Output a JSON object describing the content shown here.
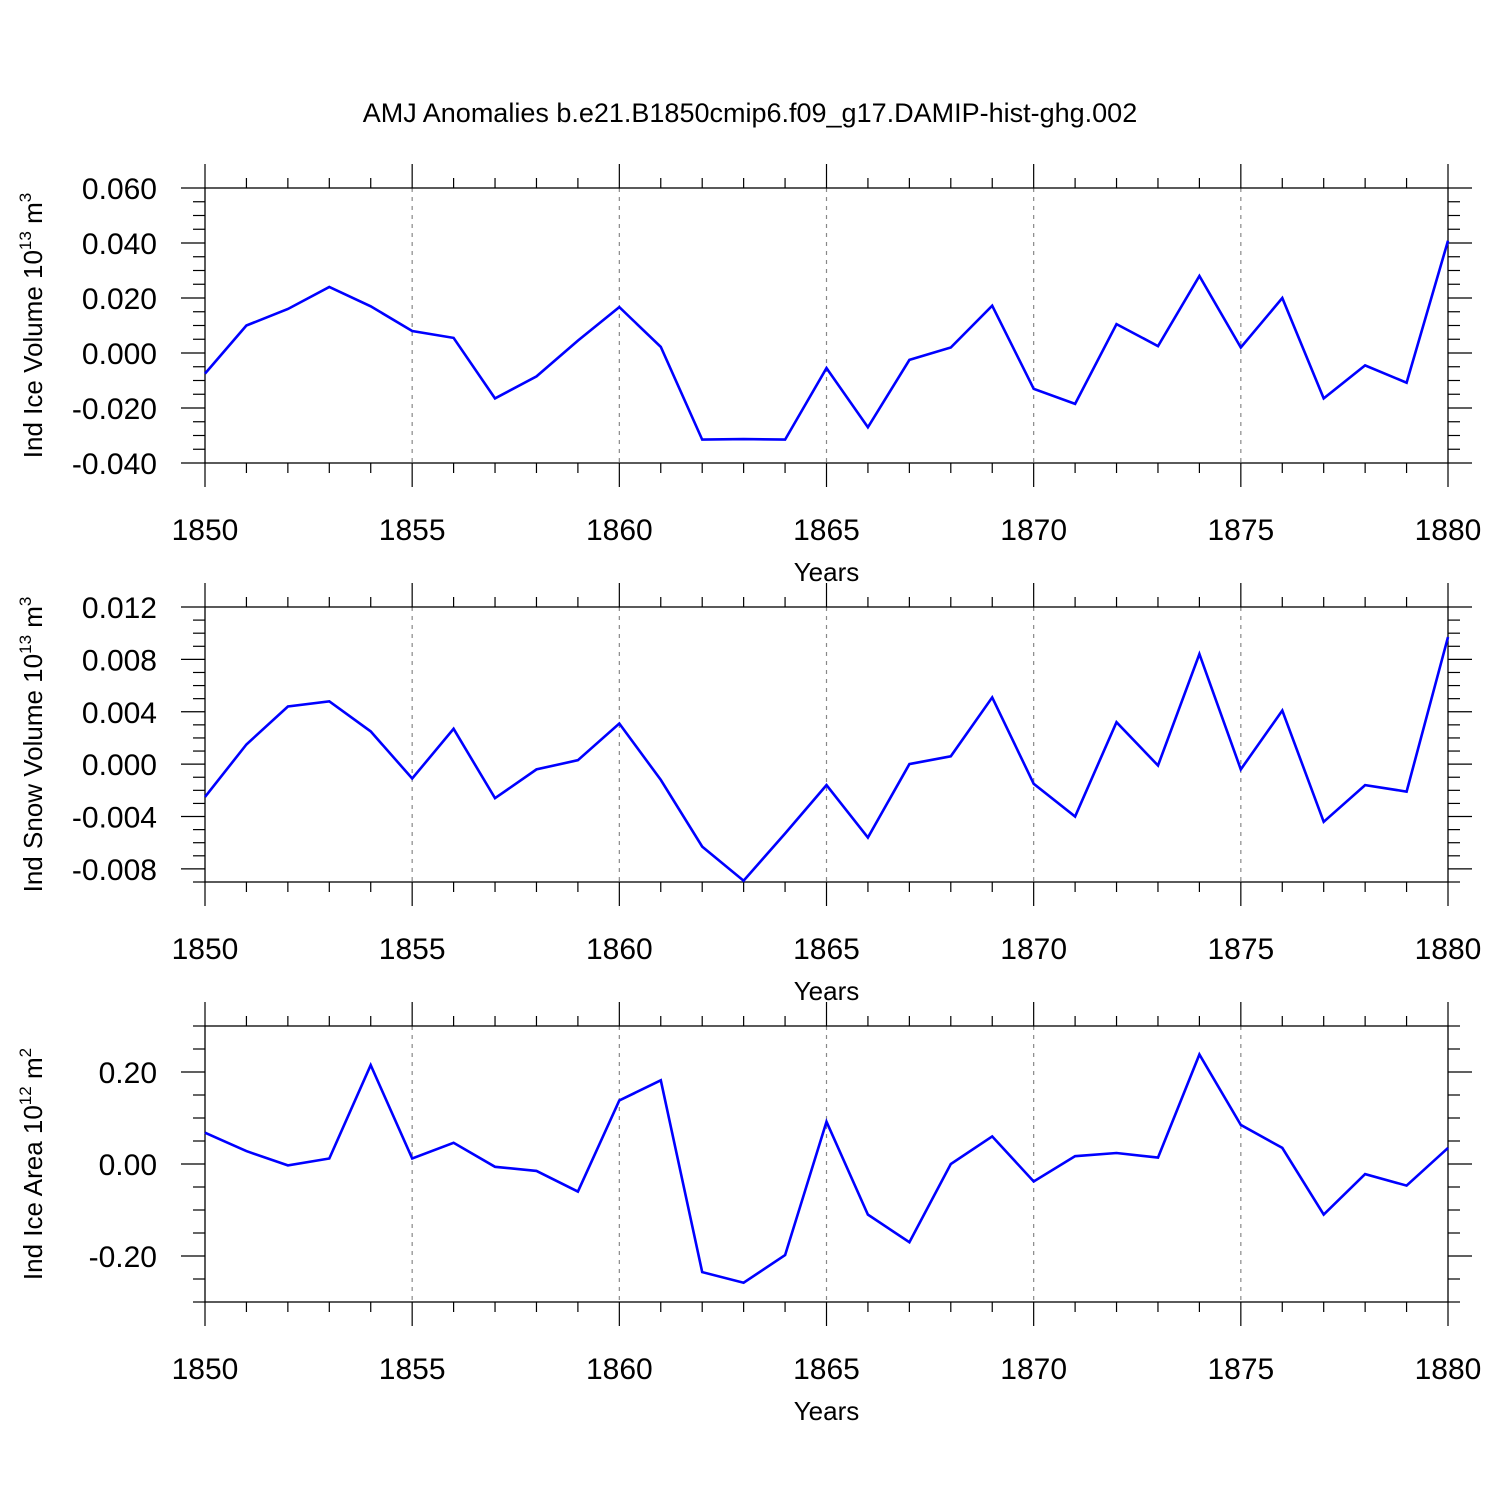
{
  "title": "AMJ Anomalies b.e21.B1850cmip6.f09_g17.DAMIP-hist-ghg.002",
  "colors": {
    "line": "#0000ff",
    "axis": "#000000",
    "grid": "#888888"
  },
  "chart_data": [
    {
      "type": "line",
      "ylabel": {
        "main": "Ind Ice Volume 10",
        "exp": "13",
        "unit": " m",
        "unit_exp": "3"
      },
      "xlabel": "Years",
      "xlim": [
        1850,
        1880
      ],
      "ylim": [
        -0.04,
        0.06
      ],
      "x_ticks": [
        "1850",
        "1855",
        "1860",
        "1865",
        "1870",
        "1875",
        "1880"
      ],
      "y_ticks": [
        {
          "v": 0.06,
          "label": "0.060"
        },
        {
          "v": 0.04,
          "label": "0.040"
        },
        {
          "v": 0.02,
          "label": "0.020"
        },
        {
          "v": 0.0,
          "label": "0.000"
        },
        {
          "v": -0.02,
          "label": "-0.020"
        },
        {
          "v": -0.04,
          "label": "-0.040"
        }
      ],
      "grid": "vertical dashed at major x ticks",
      "x": [
        1850,
        1851,
        1852,
        1853,
        1854,
        1855,
        1856,
        1857,
        1858,
        1859,
        1860,
        1861,
        1862,
        1863,
        1864,
        1865,
        1866,
        1867,
        1868,
        1869,
        1870,
        1871,
        1872,
        1873,
        1874,
        1875,
        1876,
        1877,
        1878,
        1879,
        1880
      ],
      "values": [
        -0.0075,
        0.01,
        0.016,
        0.024,
        0.017,
        0.008,
        0.0055,
        -0.0165,
        -0.0085,
        0.0045,
        0.0167,
        0.0022,
        -0.0315,
        -0.0313,
        -0.0315,
        -0.0055,
        -0.027,
        -0.0025,
        0.002,
        0.0172,
        -0.013,
        -0.0185,
        0.0105,
        0.0025,
        0.028,
        0.002,
        0.02,
        -0.0165,
        -0.0045,
        -0.0108,
        0.0408
      ]
    },
    {
      "type": "line",
      "ylabel": {
        "main": "Ind Snow Volume 10",
        "exp": "13",
        "unit": " m",
        "unit_exp": "3"
      },
      "xlabel": "Years",
      "xlim": [
        1850,
        1880
      ],
      "ylim": [
        -0.009,
        0.012
      ],
      "x_ticks": [
        "1850",
        "1855",
        "1860",
        "1865",
        "1870",
        "1875",
        "1880"
      ],
      "y_ticks": [
        {
          "v": 0.012,
          "label": "0.012"
        },
        {
          "v": 0.008,
          "label": "0.008"
        },
        {
          "v": 0.004,
          "label": "0.004"
        },
        {
          "v": 0.0,
          "label": "0.000"
        },
        {
          "v": -0.004,
          "label": "-0.004"
        },
        {
          "v": -0.008,
          "label": "-0.008"
        }
      ],
      "grid": "vertical dashed at major x ticks",
      "x": [
        1850,
        1851,
        1852,
        1853,
        1854,
        1855,
        1856,
        1857,
        1858,
        1859,
        1860,
        1861,
        1862,
        1863,
        1864,
        1865,
        1866,
        1867,
        1868,
        1869,
        1870,
        1871,
        1872,
        1873,
        1874,
        1875,
        1876,
        1877,
        1878,
        1879,
        1880
      ],
      "values": [
        -0.0025,
        0.0015,
        0.0044,
        0.0048,
        0.0025,
        -0.0011,
        0.0027,
        -0.0026,
        -0.0004,
        0.0003,
        0.0031,
        -0.0012,
        -0.0063,
        -0.0089,
        -0.0053,
        -0.0016,
        -0.0056,
        0.0,
        0.0006,
        0.0051,
        -0.0015,
        -0.004,
        0.0032,
        -0.0001,
        0.0084,
        -0.0004,
        0.0041,
        -0.0044,
        -0.0016,
        -0.0021,
        0.0097
      ]
    },
    {
      "type": "line",
      "ylabel": {
        "main": "Ind Ice Area 10",
        "exp": "12",
        "unit": " m",
        "unit_exp": "2"
      },
      "xlabel": "Years",
      "xlim": [
        1850,
        1880
      ],
      "ylim": [
        -0.3,
        0.3
      ],
      "x_ticks": [
        "1850",
        "1855",
        "1860",
        "1865",
        "1870",
        "1875",
        "1880"
      ],
      "y_ticks": [
        {
          "v": 0.2,
          "label": "0.20"
        },
        {
          "v": 0.0,
          "label": "0.00"
        },
        {
          "v": -0.2,
          "label": "-0.20"
        }
      ],
      "grid": "vertical dashed at major x ticks",
      "x": [
        1850,
        1851,
        1852,
        1853,
        1854,
        1855,
        1856,
        1857,
        1858,
        1859,
        1860,
        1861,
        1862,
        1863,
        1864,
        1865,
        1866,
        1867,
        1868,
        1869,
        1870,
        1871,
        1872,
        1873,
        1874,
        1875,
        1876,
        1877,
        1878,
        1879,
        1880
      ],
      "values": [
        0.068,
        0.028,
        -0.003,
        0.012,
        0.215,
        0.012,
        0.046,
        -0.006,
        -0.015,
        -0.06,
        0.138,
        0.182,
        -0.235,
        -0.258,
        -0.198,
        0.092,
        -0.11,
        -0.17,
        0.0,
        0.06,
        -0.038,
        0.017,
        0.024,
        0.014,
        0.238,
        0.085,
        0.035,
        -0.11,
        -0.022,
        -0.047,
        0.035
      ]
    }
  ]
}
